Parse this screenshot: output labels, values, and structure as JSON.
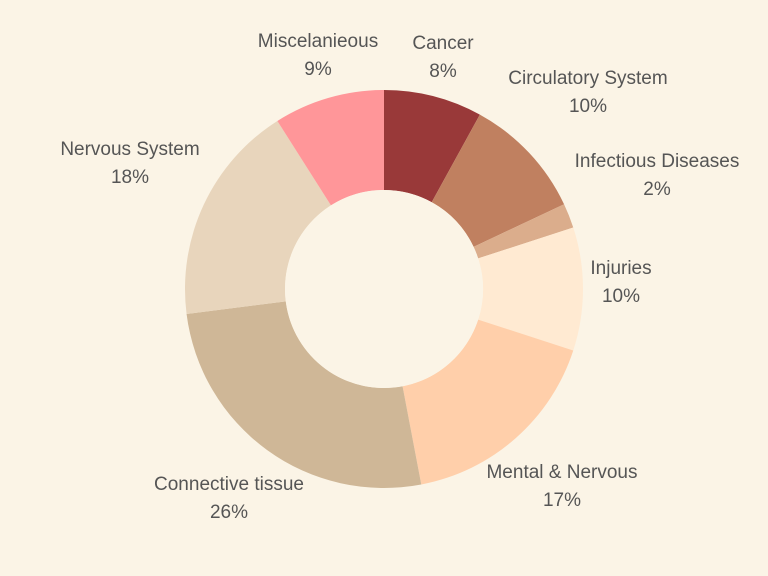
{
  "chart_data": {
    "type": "pie",
    "donut": true,
    "title": "",
    "legend": "none",
    "background_color": "#FBF4E6",
    "slices": [
      {
        "label": "Cancer",
        "value_label": "8%",
        "value": 8,
        "color": "#993939"
      },
      {
        "label": "Circulatory System",
        "value_label": "10%",
        "value": 10,
        "color": "#C08060"
      },
      {
        "label": "Infectious Diseases",
        "value_label": "2%",
        "value": 2,
        "color": "#DBAD8C"
      },
      {
        "label": "Injuries",
        "value_label": "10%",
        "value": 10,
        "color": "#FFEAD2"
      },
      {
        "label": "Mental & Nervous",
        "value_label": "17%",
        "value": 17,
        "color": "#FFCFAA"
      },
      {
        "label": "Connective tissue",
        "value_label": "26%",
        "value": 26,
        "color": "#CFB797"
      },
      {
        "label": "Nervous System",
        "value_label": "18%",
        "value": 18,
        "color": "#E8D5BC"
      },
      {
        "label": "Miscelanieous",
        "value_label": "9%",
        "value": 9,
        "color": "#FF9699"
      }
    ]
  }
}
